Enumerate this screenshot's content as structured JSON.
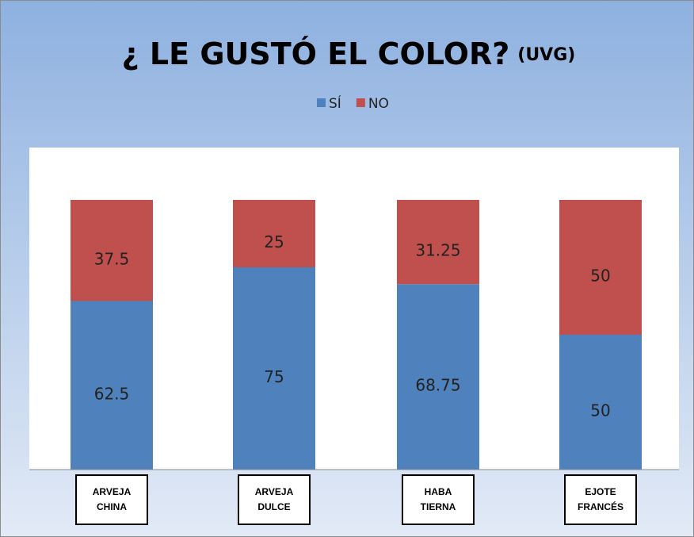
{
  "chart_data": {
    "type": "stacked_bar",
    "title": "¿ LE GUSTÓ EL COLOR?",
    "subtitle": "(UVG)",
    "categories": [
      "ARVEJA CHINA",
      "ARVEJA DULCE",
      "HABA TIERNA",
      "EJOTE FRANCÉS"
    ],
    "series": [
      {
        "name": "SÍ",
        "color": "#4f81bd",
        "values": [
          62.5,
          75,
          68.75,
          50
        ]
      },
      {
        "name": "NO",
        "color": "#c0504d",
        "values": [
          37.5,
          25,
          31.25,
          50
        ]
      }
    ],
    "legend": "top"
  }
}
